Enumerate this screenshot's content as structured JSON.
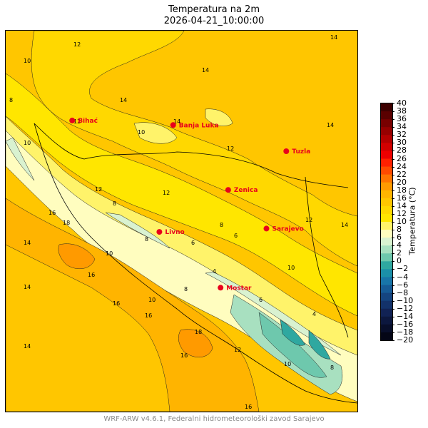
{
  "header": {
    "title": "Temperatura na 2m",
    "datetime": "2026-04-21_10:00:00"
  },
  "footer": {
    "credit": "WRF-ARW v4.6.1, Federalni hidrometeorološki zavod Sarajevo"
  },
  "colorbar": {
    "label": "Temperatura (°C)",
    "ticks": [
      "40",
      "38",
      "36",
      "34",
      "32",
      "30",
      "28",
      "26",
      "24",
      "22",
      "20",
      "18",
      "16",
      "14",
      "12",
      "10",
      "8",
      "6",
      "4",
      "2",
      "0",
      "−2",
      "−4",
      "−6",
      "−8",
      "−10",
      "−12",
      "−14",
      "−16",
      "−18",
      "−20"
    ],
    "colors": [
      "#3d0000",
      "#5a0000",
      "#780000",
      "#960000",
      "#b40000",
      "#d20000",
      "#ee0000",
      "#ff2000",
      "#ff4a00",
      "#ff7400",
      "#ff9a00",
      "#ffb400",
      "#ffc600",
      "#ffd800",
      "#ffe600",
      "#fff36a",
      "#fffdbf",
      "#d9f2d0",
      "#a8e0c0",
      "#6ec8ad",
      "#2fa8a0",
      "#1b8fa8",
      "#1875a8",
      "#165b96",
      "#154580",
      "#13326a",
      "#112254",
      "#0c173e",
      "#080e2a",
      "#040616"
    ]
  },
  "cities": [
    {
      "name": "Bihać",
      "x": 15.87,
      "y": 44.81
    },
    {
      "name": "Banja Luka",
      "x": 17.19,
      "y": 44.77
    },
    {
      "name": "Tuzla",
      "x": 18.67,
      "y": 44.54
    },
    {
      "name": "Zenica",
      "x": 17.91,
      "y": 44.2
    },
    {
      "name": "Sarajevo",
      "x": 18.41,
      "y": 43.86
    },
    {
      "name": "Livno",
      "x": 17.01,
      "y": 43.83
    },
    {
      "name": "Mostar",
      "x": 17.81,
      "y": 43.34
    }
  ],
  "contour_labels": [
    "14",
    "12",
    "10",
    "8",
    "6",
    "4",
    "16",
    "18"
  ],
  "colors": {
    "city_marker": "#e8001c",
    "credit_text": "#8a8a8a"
  }
}
